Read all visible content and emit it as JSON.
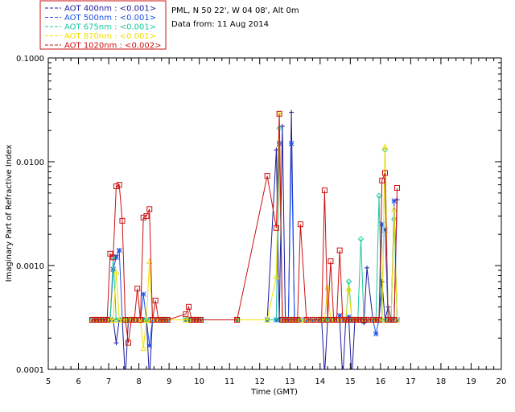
{
  "chart_data": {
    "type": "line",
    "xlabel": "Time (GMT)",
    "ylabel": "Imaginary Part of Refractive Index",
    "x_ticks": [
      "5",
      "6",
      "7",
      "8",
      "9",
      "10",
      "11",
      "12",
      "13",
      "14",
      "15",
      "16",
      "17",
      "18",
      "19",
      "20"
    ],
    "y_ticks": [
      "0.0001",
      "0.0010",
      "0.0100",
      "0.1000"
    ],
    "xlim": [
      5,
      20
    ],
    "ylim": [
      0.0001,
      0.1
    ],
    "y_scale": "log",
    "info": [
      "PML, N 50 22', W 04 08', Alt 0m",
      "Data from: 11 Aug 2014"
    ],
    "legend": [
      {
        "label": "AOT  400nm : <0.001>",
        "color": "#1a1a9e",
        "marker": "plus"
      },
      {
        "label": "AOT  500nm : <0.001>",
        "color": "#1f52e8",
        "marker": "asterisk"
      },
      {
        "label": "AOT  675nm : <0.001>",
        "color": "#1cc8a0",
        "marker": "diamond"
      },
      {
        "label": "AOT  870nm : <0.001>",
        "color": "#f0e000",
        "marker": "triangle"
      },
      {
        "label": "AOT 1020nm : <0.002>",
        "color": "#cc1111",
        "marker": "square"
      }
    ],
    "series": [
      {
        "name": "AOT  400nm : <0.001>",
        "x": [
          6.45,
          6.55,
          6.65,
          6.75,
          6.85,
          6.95,
          7.05,
          7.15,
          7.25,
          7.35,
          7.45,
          7.55,
          7.65,
          7.75,
          7.85,
          7.95,
          8.05,
          8.15,
          8.25,
          8.35,
          8.45,
          8.55,
          8.65,
          8.75,
          8.85,
          8.95,
          9.55,
          9.65,
          9.75,
          9.85,
          9.95,
          10.05,
          11.25,
          12.25,
          12.55,
          12.65,
          12.75,
          12.85,
          12.95,
          13.05,
          13.15,
          13.25,
          13.35,
          13.55,
          13.75,
          13.95,
          14.05,
          14.15,
          14.25,
          14.35,
          14.45,
          14.55,
          14.65,
          14.75,
          14.85,
          14.95,
          15.05,
          15.15,
          15.25,
          15.35,
          15.45,
          15.55,
          15.75,
          15.85,
          15.95,
          16.05,
          16.15,
          16.25,
          16.35,
          16.45,
          16.55
        ],
        "y": [
          0.0003,
          0.0003,
          0.0003,
          0.0003,
          0.0003,
          0.0003,
          0.0003,
          0.0003,
          0.00018,
          0.0003,
          0.0003,
          8e-05,
          0.0003,
          0.0003,
          0.0003,
          0.0003,
          0.0003,
          0.0003,
          0.0003,
          8e-05,
          0.0003,
          0.0003,
          0.0003,
          0.0003,
          0.0003,
          0.0003,
          0.0003,
          0.0003,
          0.0003,
          0.0003,
          0.0003,
          0.0003,
          0.0003,
          0.0003,
          0.013,
          0.0003,
          0.022,
          0.0003,
          0.0003,
          0.03,
          0.0003,
          0.0003,
          0.0003,
          0.0003,
          0.0003,
          0.0003,
          0.0003,
          9e-05,
          0.0003,
          0.0003,
          0.0003,
          0.0003,
          0.0003,
          8e-05,
          0.0003,
          0.0003,
          8e-05,
          0.0003,
          0.0003,
          0.0003,
          0.00028,
          0.00095,
          0.0003,
          0.0003,
          0.0003,
          0.0007,
          0.0003,
          0.0004,
          0.0003,
          0.0003,
          0.0043
        ]
      },
      {
        "name": "AOT  500nm : <0.001>",
        "x": [
          6.45,
          6.55,
          6.65,
          6.75,
          6.85,
          6.95,
          7.05,
          7.15,
          7.25,
          7.35,
          7.45,
          7.55,
          7.65,
          7.75,
          7.85,
          7.95,
          8.05,
          8.15,
          8.25,
          8.35,
          8.45,
          8.55,
          8.65,
          8.75,
          8.85,
          8.95,
          9.55,
          9.65,
          9.75,
          9.85,
          9.95,
          10.05,
          11.25,
          12.25,
          12.55,
          12.65,
          12.75,
          12.85,
          12.95,
          13.05,
          13.15,
          13.25,
          13.35,
          13.55,
          13.75,
          13.95,
          14.05,
          14.15,
          14.25,
          14.35,
          14.45,
          14.55,
          14.65,
          14.75,
          14.85,
          14.95,
          15.05,
          15.15,
          15.25,
          15.35,
          15.45,
          15.55,
          15.75,
          15.85,
          15.95,
          16.05,
          16.15,
          16.25,
          16.35,
          16.45,
          16.55
        ],
        "y": [
          0.0003,
          0.0003,
          0.0003,
          0.0003,
          0.0003,
          0.0003,
          0.0003,
          0.00092,
          0.0012,
          0.0014,
          0.0003,
          0.0003,
          0.0003,
          0.0003,
          0.0003,
          0.0003,
          0.0003,
          0.00053,
          0.0003,
          0.00017,
          0.0003,
          0.0003,
          0.0003,
          0.0003,
          0.0003,
          0.0003,
          0.0003,
          0.0003,
          0.0003,
          0.0003,
          0.0003,
          0.0003,
          0.0003,
          0.0003,
          0.0003,
          0.015,
          0.0003,
          0.0003,
          0.0003,
          0.015,
          0.0003,
          0.0003,
          0.0003,
          0.0003,
          0.0003,
          0.0003,
          0.0003,
          0.0003,
          0.0003,
          0.0003,
          0.0003,
          0.0003,
          0.00033,
          0.0003,
          0.0003,
          0.00032,
          0.0003,
          0.0003,
          0.0003,
          0.0003,
          0.0003,
          0.0003,
          0.0003,
          0.00022,
          0.0003,
          0.0025,
          0.0022,
          0.0003,
          0.0003,
          0.0042,
          0.0003
        ]
      },
      {
        "name": "AOT  675nm : <0.001>",
        "x": [
          6.45,
          6.55,
          6.65,
          6.75,
          6.85,
          6.95,
          7.05,
          7.15,
          7.25,
          7.35,
          7.45,
          7.55,
          7.65,
          7.75,
          7.85,
          7.95,
          8.05,
          8.15,
          8.25,
          8.35,
          8.45,
          8.55,
          8.65,
          8.75,
          8.85,
          8.95,
          9.55,
          9.65,
          9.75,
          9.85,
          9.95,
          10.05,
          11.25,
          12.25,
          12.55,
          12.65,
          12.75,
          12.85,
          12.95,
          13.05,
          13.15,
          13.25,
          13.35,
          13.55,
          13.75,
          13.95,
          14.05,
          14.15,
          14.25,
          14.35,
          14.45,
          14.55,
          14.65,
          14.75,
          14.85,
          14.95,
          15.05,
          15.15,
          15.25,
          15.35,
          15.45,
          15.55,
          15.75,
          15.85,
          15.95,
          16.05,
          16.15,
          16.25,
          16.35,
          16.45,
          16.55
        ],
        "y": [
          0.0003,
          0.0003,
          0.0003,
          0.0003,
          0.0003,
          0.0003,
          0.0003,
          0.0012,
          0.0003,
          0.0003,
          0.0003,
          0.0003,
          0.0003,
          0.0003,
          0.0003,
          0.0003,
          0.0003,
          0.0003,
          0.0003,
          0.0003,
          0.0003,
          0.0003,
          0.0003,
          0.0003,
          0.0003,
          0.0003,
          0.0003,
          0.0003,
          0.0003,
          0.0003,
          0.0003,
          0.0003,
          0.0003,
          0.0003,
          0.0003,
          0.021,
          0.0003,
          0.0003,
          0.0003,
          0.0003,
          0.0003,
          0.0003,
          0.0003,
          0.0003,
          0.0003,
          0.0003,
          0.0003,
          0.0003,
          0.0003,
          0.0003,
          0.0003,
          0.0003,
          0.0003,
          0.0003,
          0.0003,
          0.0007,
          0.0003,
          0.0003,
          0.0003,
          0.0018,
          0.0003,
          0.0003,
          0.0003,
          0.0003,
          0.0047,
          0.0003,
          0.013,
          0.0003,
          0.0003,
          0.0028,
          0.0003
        ]
      },
      {
        "name": "AOT  870nm : <0.001>",
        "x": [
          6.45,
          6.55,
          6.65,
          6.75,
          6.85,
          6.95,
          7.05,
          7.15,
          7.25,
          7.35,
          7.45,
          7.55,
          7.65,
          7.75,
          7.85,
          7.95,
          8.05,
          8.15,
          8.25,
          8.35,
          8.45,
          8.55,
          8.65,
          8.75,
          8.85,
          8.95,
          9.55,
          9.65,
          9.75,
          9.85,
          9.95,
          10.05,
          11.25,
          12.25,
          12.55,
          12.65,
          12.75,
          12.85,
          12.95,
          13.05,
          13.15,
          13.25,
          13.35,
          13.55,
          13.75,
          13.95,
          14.05,
          14.15,
          14.25,
          14.35,
          14.45,
          14.55,
          14.65,
          14.75,
          14.85,
          14.95,
          15.05,
          15.15,
          15.25,
          15.35,
          15.45,
          15.55,
          15.75,
          15.85,
          15.95,
          16.05,
          16.15,
          16.25,
          16.35,
          16.45,
          16.55
        ],
        "y": [
          0.0003,
          0.0003,
          0.0003,
          0.0003,
          0.0003,
          0.0003,
          0.0003,
          0.0003,
          0.00087,
          0.0003,
          0.0003,
          0.0003,
          0.0003,
          0.0003,
          0.0003,
          0.0003,
          0.0003,
          0.00016,
          0.0003,
          0.0011,
          0.0003,
          0.0003,
          0.0003,
          0.0003,
          0.0003,
          0.0003,
          0.0003,
          0.0003,
          0.0003,
          0.0003,
          0.0003,
          0.0003,
          0.0003,
          0.0003,
          0.00079,
          0.029,
          0.0003,
          0.0003,
          0.0003,
          0.0003,
          0.0003,
          0.0003,
          0.0003,
          0.0003,
          0.0003,
          0.0003,
          0.0003,
          0.0003,
          0.00062,
          0.0003,
          0.0003,
          0.0003,
          0.0003,
          0.0003,
          0.0003,
          0.0006,
          0.0003,
          0.0003,
          0.0003,
          0.0003,
          0.0003,
          0.0003,
          0.0003,
          0.0003,
          0.0003,
          0.0003,
          0.014,
          0.0003,
          0.0003,
          0.0035,
          0.0003
        ]
      },
      {
        "name": "AOT 1020nm : <0.002>",
        "x": [
          6.45,
          6.55,
          6.65,
          6.75,
          6.85,
          6.95,
          7.05,
          7.15,
          7.25,
          7.35,
          7.45,
          7.55,
          7.65,
          7.75,
          7.85,
          7.95,
          8.05,
          8.15,
          8.25,
          8.35,
          8.45,
          8.55,
          8.65,
          8.75,
          8.85,
          8.95,
          9.55,
          9.65,
          9.75,
          9.85,
          9.95,
          10.05,
          11.25,
          12.25,
          12.55,
          12.65,
          12.75,
          12.85,
          12.95,
          13.05,
          13.15,
          13.25,
          13.35,
          13.55,
          13.75,
          13.95,
          14.05,
          14.15,
          14.25,
          14.35,
          14.45,
          14.55,
          14.65,
          14.75,
          14.85,
          14.95,
          15.05,
          15.15,
          15.25,
          15.35,
          15.45,
          15.55,
          15.75,
          15.85,
          15.95,
          16.05,
          16.15,
          16.25,
          16.35,
          16.45,
          16.55
        ],
        "y": [
          0.0003,
          0.0003,
          0.0003,
          0.0003,
          0.0003,
          0.0003,
          0.0013,
          0.0012,
          0.0058,
          0.006,
          0.0027,
          0.0003,
          0.00018,
          0.0003,
          0.0003,
          0.0006,
          0.0003,
          0.0029,
          0.003,
          0.0035,
          0.0003,
          0.00046,
          0.0003,
          0.0003,
          0.0003,
          0.0003,
          0.00034,
          0.0004,
          0.0003,
          0.0003,
          0.0003,
          0.0003,
          0.0003,
          0.0073,
          0.0023,
          0.029,
          0.0003,
          0.0003,
          0.0003,
          0.0003,
          0.0003,
          0.0003,
          0.0025,
          0.0003,
          0.0003,
          0.0003,
          0.0003,
          0.0053,
          0.0003,
          0.0011,
          0.0003,
          0.0003,
          0.0014,
          0.0003,
          0.0003,
          0.0003,
          0.0003,
          0.0003,
          0.0003,
          0.0003,
          0.0003,
          0.0003,
          0.0003,
          0.0003,
          0.0003,
          0.0066,
          0.0078,
          0.0003,
          0.0003,
          0.0003,
          0.0056
        ]
      }
    ]
  }
}
